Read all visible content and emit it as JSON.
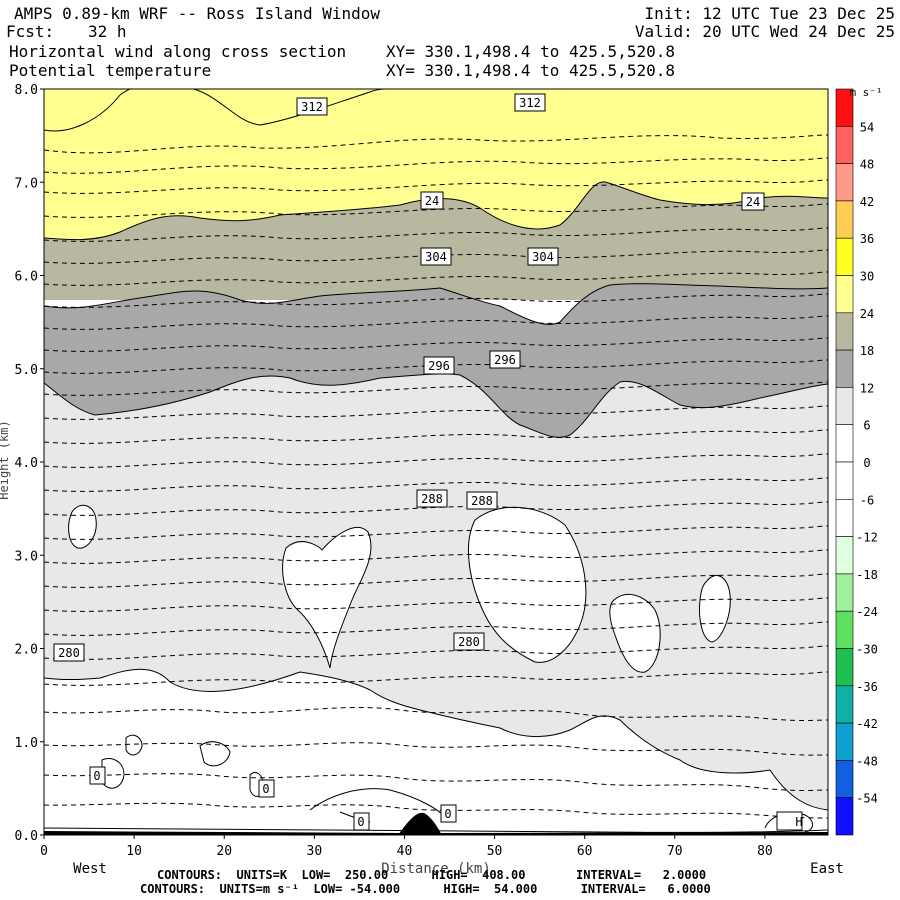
{
  "header": {
    "title": "AMPS 0.89-km WRF -- Ross Island Window",
    "forecast_label": "Fcst:",
    "forecast_hours": "32 h",
    "init": "Init: 12 UTC Tue 23 Dec 25",
    "valid": "Valid: 20 UTC Wed 24 Dec 25",
    "field1": "Horizontal wind along cross section",
    "field2": "Potential temperature",
    "xy1": "XY= 330.1,498.4 to 425.5,520.8",
    "xy2": "XY= 330.1,498.4 to 425.5,520.8"
  },
  "footer": {
    "line1": "CONTOURS:  UNITS=K  LOW=  250.00      HIGH=  408.00       INTERVAL=   2.0000",
    "line2": "CONTOURS:  UNITS=m s⁻¹  LOW= -54.000      HIGH=  54.000      INTERVAL=   6.0000"
  },
  "chart_data": {
    "type": "heatmap",
    "xlabel": "Distance (km)",
    "ylabel": "Height (km)",
    "x_range": [
      0,
      87
    ],
    "y_range": [
      0,
      8
    ],
    "x_ticks": [
      0,
      10,
      20,
      30,
      40,
      50,
      60,
      70,
      80
    ],
    "y_ticks": [
      "0.0",
      "1.0",
      "2.0",
      "3.0",
      "4.0",
      "5.0",
      "6.0",
      "7.0",
      "8.0"
    ],
    "x_end_labels": {
      "left": "West",
      "right": "East"
    },
    "colorbar": {
      "units": "m s⁻¹",
      "levels": [
        54,
        48,
        42,
        36,
        30,
        24,
        18,
        12,
        6,
        0,
        -6,
        -12,
        -18,
        -24,
        -30,
        -36,
        -42,
        -48,
        -54
      ],
      "colors": [
        "#ff1010",
        "#ff6060",
        "#ff9a8a",
        "#ffcc55",
        "#ffff20",
        "#ffff90",
        "#b8b8a0",
        "#a8a8a8",
        "#e8e8e8",
        "#ffffff",
        "#ffffff",
        "#ffffff",
        "#e0ffe0",
        "#a0f0a0",
        "#60e060",
        "#20c050",
        "#10b0a8",
        "#10a0d0",
        "#1060e0",
        "#1010ff"
      ]
    },
    "wind_fill_regions": [
      {
        "level_range": [
          24,
          30
        ],
        "color": "#ffff90"
      },
      {
        "level_range": [
          18,
          24
        ],
        "color": "#b8b8a0"
      },
      {
        "level_range": [
          12,
          18
        ],
        "color": "#a8a8a8"
      },
      {
        "level_range": [
          6,
          12
        ],
        "color": "#e8e8e8"
      },
      {
        "level_range": [
          -6,
          6
        ],
        "color": "#ffffff"
      }
    ],
    "theta_contour_labels": [
      "312",
      "312",
      "304",
      "304",
      "296",
      "296",
      "288",
      "288",
      "280",
      "280"
    ],
    "wind_contour_labels": [
      "24",
      "24",
      "0",
      "0",
      "0",
      "0"
    ],
    "high_marker": "H"
  }
}
